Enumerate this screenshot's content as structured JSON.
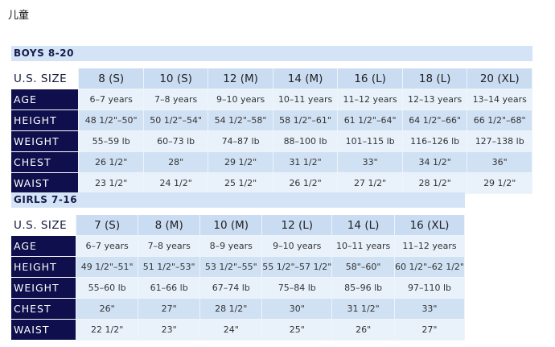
{
  "page_title": "儿童",
  "boys": {
    "title": "BOYS 8-20",
    "header_label": "U.S. SIZE",
    "sizes": [
      "8 (S)",
      "10 (S)",
      "12 (M)",
      "14 (M)",
      "16 (L)",
      "18 (L)",
      "20 (XL)"
    ],
    "rows": [
      {
        "label": "AGE",
        "values": [
          "6–7 years",
          "7–8 years",
          "9–10 years",
          "10–11 years",
          "11–12 years",
          "12–13 years",
          "13–14 years"
        ]
      },
      {
        "label": "HEIGHT",
        "values": [
          "48 1/2\"–50\"",
          "50 1/2\"–54\"",
          "54 1/2\"–58\"",
          "58 1/2\"–61\"",
          "61 1/2\"–64\"",
          "64 1/2\"–66\"",
          "66 1/2\"–68\""
        ]
      },
      {
        "label": "WEIGHT",
        "values": [
          "55–59 lb",
          "60–73 lb",
          "74–87 lb",
          "88–100 lb",
          "101–115 lb",
          "116–126 lb",
          "127–138 lb"
        ]
      },
      {
        "label": "CHEST",
        "values": [
          "26 1/2\"",
          "28\"",
          "29 1/2\"",
          "31 1/2\"",
          "33\"",
          "34 1/2\"",
          "36\""
        ]
      },
      {
        "label": "WAIST",
        "values": [
          "23 1/2\"",
          "24 1/2\"",
          "25 1/2\"",
          "26 1/2\"",
          "27 1/2\"",
          "28 1/2\"",
          "29 1/2\""
        ]
      }
    ]
  },
  "girls": {
    "title": "GIRLS 7-16",
    "header_label": "U.S. SIZE",
    "sizes": [
      "7 (S)",
      "8 (M)",
      "10 (M)",
      "12 (L)",
      "14 (L)",
      "16 (XL)"
    ],
    "rows": [
      {
        "label": "AGE",
        "values": [
          "6–7 years",
          "7–8 years",
          "8–9 years",
          "9–10 years",
          "10–11 years",
          "11–12 years"
        ]
      },
      {
        "label": "HEIGHT",
        "values": [
          "49 1/2\"–51\"",
          "51 1/2\"–53\"",
          "53 1/2\"–55\"",
          "55 1/2\"–57 1/2\"",
          "58\"–60\"",
          "60 1/2\"–62 1/2\""
        ]
      },
      {
        "label": "WEIGHT",
        "values": [
          "55–60 lb",
          "61–66 lb",
          "67–74 lb",
          "75–84 lb",
          "85–96 lb",
          "97–110 lb"
        ]
      },
      {
        "label": "CHEST",
        "values": [
          "26\"",
          "27\"",
          "28 1/2\"",
          "30\"",
          "31 1/2\"",
          "33\""
        ]
      },
      {
        "label": "WAIST",
        "values": [
          "22 1/2\"",
          "23\"",
          "24\"",
          "25\"",
          "26\"",
          "27\""
        ]
      }
    ]
  }
}
